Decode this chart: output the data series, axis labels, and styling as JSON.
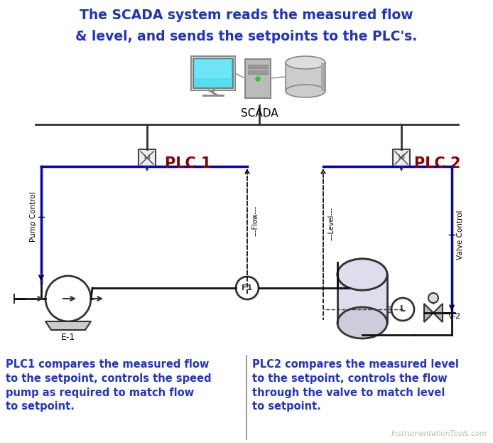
{
  "title_line1": "The SCADA system reads the measured flow",
  "title_line2": "& level, and sends the setpoints to the PLC's.",
  "title_color": "#2233BB",
  "title_fontsize": 13.5,
  "bg_color": "#FFFFFF",
  "scada_label": "SCADA",
  "plc1_label": "PLC 1",
  "plc2_label": "PLC 2",
  "plc_color": "#8B0000",
  "pump_label": "E-1",
  "flow_label": "F1",
  "level_label": "L",
  "valve_label": "V-2",
  "pump_control_label": "Pump Control",
  "valve_control_label": "Valve Control",
  "flow_signal_label": "---Flow---",
  "level_signal_label": "---Level---",
  "bottom_left_text": "PLC1 compares the measured flow\nto the setpoint, controls the speed\npump as required to match flow\nto setpoint.",
  "bottom_right_text": "PLC2 compares the measured level\nto the setpoint, controls the flow\nthrough the valve to match level\nto setpoint.",
  "bottom_text_color": "#2233CC",
  "watermark": "InstrumentationTools.com",
  "watermark_color": "#BBBBAA",
  "line_color": "#0000CC",
  "pipe_color": "#111111",
  "bus_color": "#333333"
}
